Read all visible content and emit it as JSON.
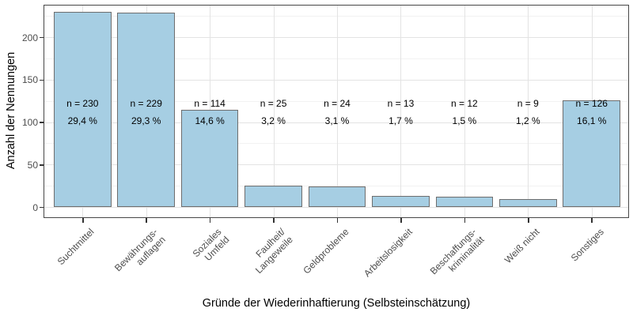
{
  "chart_data": {
    "type": "bar",
    "title": "",
    "xlabel": "Gründe der Wiederinhaftierung (Selbsteinschätzung)",
    "ylabel": "Anzahl der Nennungen",
    "categories": [
      "Suchtmittel",
      "Bewährungs-\nauflagen",
      "Soziales\nUmfeld",
      "Faulheit/\nLangeweile",
      "Geldprobleme",
      "Arbeitslosigkeit",
      "Beschaffungs-\nkriminalität",
      "Weiß nicht",
      "Sonstiges"
    ],
    "values": [
      230,
      229,
      114,
      25,
      24,
      13,
      12,
      9,
      126
    ],
    "labels_n": [
      "n = 230",
      "n = 229",
      "n = 114",
      "n = 25",
      "n = 24",
      "n = 13",
      "n = 12",
      "n = 9",
      "n = 126"
    ],
    "labels_pct": [
      "29,4 %",
      "29,3 %",
      "14,6 %",
      "3,2 %",
      "3,1 %",
      "1,7 %",
      "1,5 %",
      "1,2 %",
      "16,1 %"
    ],
    "yticks": [
      {
        "value": 0,
        "label": "0"
      },
      {
        "value": 50,
        "label": "50"
      },
      {
        "value": 100,
        "label": "100"
      },
      {
        "value": 150,
        "label": "150"
      },
      {
        "value": 200,
        "label": "200"
      }
    ],
    "yminor": [
      25,
      75,
      125,
      175,
      225
    ],
    "ylim": [
      0,
      238
    ],
    "grid": "major+minor horizontal, major vertical at category centers",
    "legend": "none",
    "colors": {
      "bar_fill": "#A6CEE3",
      "bar_border": "#6E6E6E",
      "panel_border": "#474747",
      "grid_major": "#E3E3E3",
      "grid_minor": "#F2F2F2",
      "tick_text": "#4D4D4D",
      "title_text": "#000000"
    }
  }
}
